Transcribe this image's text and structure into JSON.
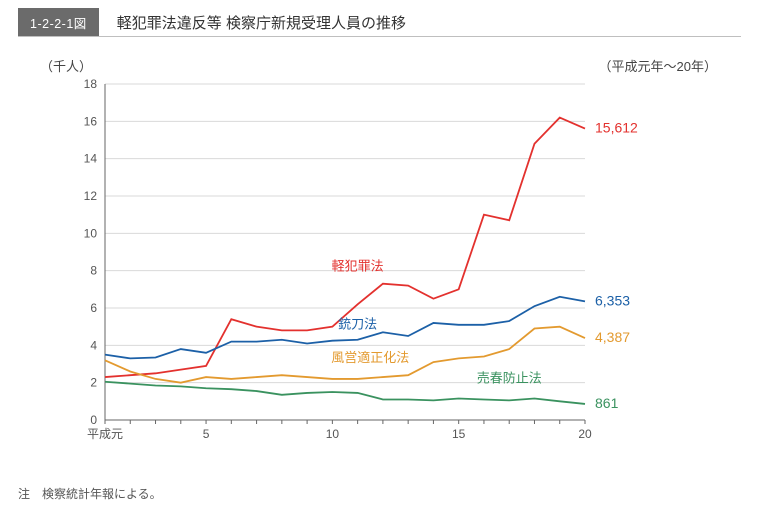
{
  "header": {
    "code": "1-2-2-1図",
    "title": "軽犯罪法違反等 検察庁新規受理人員の推移"
  },
  "period_label": "（平成元年～20年）",
  "y_axis": {
    "unit_label": "（千人）",
    "min": 0,
    "max": 18,
    "tick_step": 2,
    "ticks": [
      0,
      2,
      4,
      6,
      8,
      10,
      12,
      14,
      16,
      18
    ]
  },
  "x_axis": {
    "label_first": "平成元",
    "visible_ticks": [
      1,
      5,
      10,
      15,
      20
    ],
    "tick_labels": [
      "平成元",
      "5",
      "10",
      "15",
      "20"
    ],
    "min": 1,
    "max": 20
  },
  "chart": {
    "type": "line",
    "background_color": "#ffffff",
    "axis_color": "#666666",
    "grid_color": "#d9d9d9",
    "line_width": 1.8,
    "label_fontsize": 13,
    "tick_fontsize": 12,
    "endlabel_fontsize": 14
  },
  "series": [
    {
      "name": "軽犯罪法",
      "color": "#e3312e",
      "label_xy": [
        11,
        8.0
      ],
      "end_value_label": "15,612",
      "values": [
        2.3,
        2.4,
        2.5,
        2.7,
        2.9,
        5.4,
        5.0,
        4.8,
        4.8,
        5.0,
        6.2,
        7.3,
        7.2,
        6.5,
        7.0,
        11.0,
        10.7,
        14.8,
        16.2,
        15.612
      ]
    },
    {
      "name": "銃刀法",
      "color": "#1c60a7",
      "label_xy": [
        11,
        4.9
      ],
      "end_value_label": "6,353",
      "values": [
        3.5,
        3.3,
        3.35,
        3.8,
        3.6,
        4.2,
        4.2,
        4.3,
        4.1,
        4.25,
        4.3,
        4.7,
        4.5,
        5.2,
        5.1,
        5.1,
        5.3,
        6.1,
        6.6,
        6.353
      ]
    },
    {
      "name": "風営適正化法",
      "color": "#e39a2f",
      "label_xy": [
        11.5,
        3.1
      ],
      "end_value_label": "4,387",
      "values": [
        3.2,
        2.6,
        2.2,
        2.0,
        2.3,
        2.2,
        2.3,
        2.4,
        2.3,
        2.2,
        2.2,
        2.3,
        2.4,
        3.1,
        3.3,
        3.4,
        3.8,
        4.9,
        5.0,
        4.387
      ]
    },
    {
      "name": "売春防止法",
      "color": "#3a925f",
      "label_xy": [
        17,
        2.0
      ],
      "end_value_label": "861",
      "values": [
        2.05,
        1.95,
        1.85,
        1.8,
        1.7,
        1.65,
        1.55,
        1.35,
        1.45,
        1.5,
        1.45,
        1.1,
        1.1,
        1.05,
        1.15,
        1.1,
        1.05,
        1.15,
        1.0,
        0.861
      ]
    }
  ],
  "footnote": {
    "prefix": "注",
    "text": "検察統計年報による。"
  }
}
